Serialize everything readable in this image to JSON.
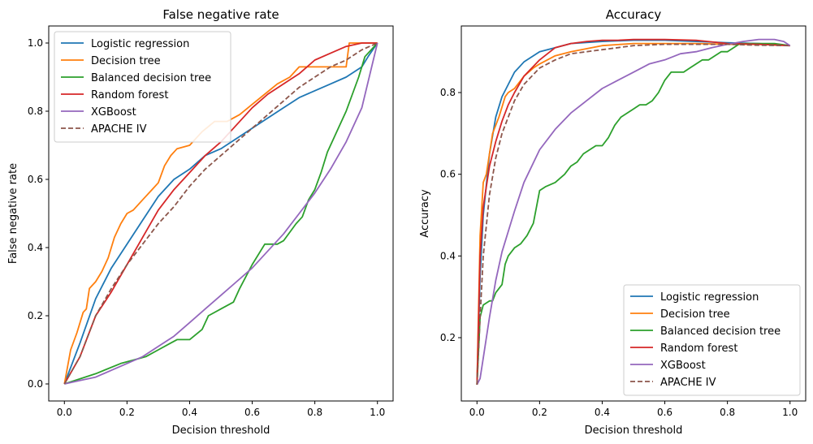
{
  "series_colors": {
    "Logistic regression": "#1f77b4",
    "Decision tree": "#ff7f0e",
    "Balanced decision tree": "#2ca02c",
    "Random forest": "#d62728",
    "XGBoost": "#9467bd",
    "APACHE IV": "#8c564b"
  },
  "chart_data": [
    {
      "type": "line",
      "title": "False negative rate",
      "xlabel": "Decision threshold",
      "ylabel": "False negative rate",
      "xlim": [
        -0.05,
        1.05
      ],
      "ylim": [
        -0.05,
        1.05
      ],
      "xticks": [
        "0.0",
        "0.2",
        "0.4",
        "0.6",
        "0.8",
        "1.0"
      ],
      "yticks": [
        "0.0",
        "0.2",
        "0.4",
        "0.6",
        "0.8",
        "1.0"
      ],
      "grid": false,
      "legend_position": "upper-left",
      "series": [
        {
          "name": "Logistic regression",
          "style": "solid",
          "x": [
            0,
            0.05,
            0.1,
            0.15,
            0.2,
            0.25,
            0.3,
            0.35,
            0.4,
            0.45,
            0.5,
            0.55,
            0.6,
            0.65,
            0.7,
            0.75,
            0.8,
            0.85,
            0.9,
            0.95,
            0.97,
            1.0
          ],
          "y": [
            0,
            0.12,
            0.25,
            0.34,
            0.41,
            0.48,
            0.55,
            0.6,
            0.63,
            0.67,
            0.69,
            0.72,
            0.75,
            0.78,
            0.81,
            0.84,
            0.86,
            0.88,
            0.9,
            0.93,
            0.96,
            1.0
          ]
        },
        {
          "name": "Decision tree",
          "style": "solid",
          "x": [
            0,
            0.02,
            0.04,
            0.06,
            0.07,
            0.08,
            0.1,
            0.12,
            0.14,
            0.16,
            0.18,
            0.2,
            0.22,
            0.25,
            0.28,
            0.3,
            0.32,
            0.34,
            0.36,
            0.4,
            0.44,
            0.48,
            0.52,
            0.56,
            0.6,
            0.64,
            0.68,
            0.72,
            0.75,
            0.8,
            0.85,
            0.9,
            0.91,
            1.0
          ],
          "y": [
            0,
            0.1,
            0.15,
            0.21,
            0.22,
            0.28,
            0.3,
            0.33,
            0.37,
            0.43,
            0.47,
            0.5,
            0.51,
            0.54,
            0.57,
            0.59,
            0.64,
            0.67,
            0.69,
            0.7,
            0.74,
            0.77,
            0.77,
            0.79,
            0.82,
            0.85,
            0.88,
            0.9,
            0.93,
            0.93,
            0.93,
            0.93,
            1.0,
            1.0
          ]
        },
        {
          "name": "Balanced decision tree",
          "style": "solid",
          "x": [
            0,
            0.1,
            0.18,
            0.22,
            0.26,
            0.3,
            0.34,
            0.36,
            0.4,
            0.44,
            0.46,
            0.5,
            0.54,
            0.56,
            0.6,
            0.64,
            0.66,
            0.68,
            0.7,
            0.74,
            0.76,
            0.78,
            0.8,
            0.82,
            0.84,
            0.86,
            0.88,
            0.9,
            0.92,
            0.94,
            0.96,
            1.0
          ],
          "y": [
            0,
            0.03,
            0.06,
            0.07,
            0.08,
            0.1,
            0.12,
            0.13,
            0.13,
            0.16,
            0.2,
            0.22,
            0.24,
            0.28,
            0.35,
            0.41,
            0.41,
            0.41,
            0.42,
            0.47,
            0.49,
            0.54,
            0.57,
            0.62,
            0.68,
            0.72,
            0.76,
            0.8,
            0.85,
            0.9,
            0.96,
            1.0
          ]
        },
        {
          "name": "Random forest",
          "style": "solid",
          "x": [
            0,
            0.05,
            0.1,
            0.15,
            0.2,
            0.25,
            0.3,
            0.35,
            0.4,
            0.45,
            0.5,
            0.55,
            0.6,
            0.65,
            0.7,
            0.75,
            0.8,
            0.85,
            0.9,
            0.95,
            1.0
          ],
          "y": [
            0,
            0.08,
            0.2,
            0.27,
            0.35,
            0.43,
            0.51,
            0.57,
            0.62,
            0.67,
            0.71,
            0.76,
            0.81,
            0.85,
            0.88,
            0.91,
            0.95,
            0.97,
            0.99,
            1.0,
            1.0
          ]
        },
        {
          "name": "XGBoost",
          "style": "solid",
          "x": [
            0,
            0.05,
            0.1,
            0.15,
            0.2,
            0.25,
            0.3,
            0.35,
            0.4,
            0.45,
            0.5,
            0.55,
            0.6,
            0.65,
            0.7,
            0.75,
            0.8,
            0.85,
            0.9,
            0.95,
            1.0
          ],
          "y": [
            0,
            0.01,
            0.02,
            0.04,
            0.06,
            0.08,
            0.11,
            0.14,
            0.18,
            0.22,
            0.26,
            0.3,
            0.34,
            0.39,
            0.44,
            0.5,
            0.56,
            0.63,
            0.71,
            0.81,
            1.0
          ]
        },
        {
          "name": "APACHE IV",
          "style": "dashed",
          "x": [
            0,
            0.05,
            0.1,
            0.15,
            0.2,
            0.25,
            0.3,
            0.35,
            0.4,
            0.45,
            0.5,
            0.55,
            0.6,
            0.65,
            0.7,
            0.75,
            0.8,
            0.85,
            0.9,
            0.95,
            1.0
          ],
          "y": [
            0,
            0.08,
            0.2,
            0.28,
            0.35,
            0.41,
            0.47,
            0.52,
            0.58,
            0.63,
            0.67,
            0.71,
            0.75,
            0.79,
            0.83,
            0.87,
            0.9,
            0.93,
            0.95,
            0.98,
            1.0
          ]
        }
      ]
    },
    {
      "type": "line",
      "title": "Accuracy",
      "xlabel": "Decision threshold",
      "ylabel": "Accuracy",
      "xlim": [
        -0.05,
        1.05
      ],
      "ylim": [
        0.045,
        0.963
      ],
      "xticks": [
        "0.0",
        "0.2",
        "0.4",
        "0.6",
        "0.8",
        "1.0"
      ],
      "yticks": [
        "0.2",
        "0.4",
        "0.6",
        "0.8"
      ],
      "grid": false,
      "legend_position": "lower-right",
      "series": [
        {
          "name": "Logistic regression",
          "style": "solid",
          "x": [
            0,
            0.01,
            0.02,
            0.04,
            0.06,
            0.08,
            0.1,
            0.12,
            0.15,
            0.2,
            0.25,
            0.3,
            0.4,
            0.5,
            0.6,
            0.7,
            0.8,
            0.9,
            1.0
          ],
          "y": [
            0.085,
            0.35,
            0.5,
            0.65,
            0.74,
            0.79,
            0.82,
            0.85,
            0.875,
            0.9,
            0.91,
            0.92,
            0.925,
            0.928,
            0.928,
            0.925,
            0.922,
            0.92,
            0.915
          ]
        },
        {
          "name": "Decision tree",
          "style": "solid",
          "x": [
            0,
            0.01,
            0.02,
            0.03,
            0.05,
            0.07,
            0.09,
            0.1,
            0.12,
            0.15,
            0.18,
            0.2,
            0.25,
            0.3,
            0.4,
            0.5,
            0.6,
            0.7,
            0.8,
            0.9,
            1.0
          ],
          "y": [
            0.085,
            0.45,
            0.58,
            0.6,
            0.7,
            0.74,
            0.79,
            0.8,
            0.81,
            0.84,
            0.86,
            0.87,
            0.89,
            0.9,
            0.915,
            0.92,
            0.92,
            0.92,
            0.918,
            0.918,
            0.915
          ]
        },
        {
          "name": "Balanced decision tree",
          "style": "solid",
          "x": [
            0,
            0.01,
            0.02,
            0.04,
            0.05,
            0.06,
            0.08,
            0.09,
            0.1,
            0.12,
            0.14,
            0.16,
            0.18,
            0.2,
            0.22,
            0.25,
            0.28,
            0.3,
            0.32,
            0.34,
            0.36,
            0.38,
            0.4,
            0.42,
            0.44,
            0.46,
            0.48,
            0.5,
            0.52,
            0.54,
            0.56,
            0.58,
            0.6,
            0.62,
            0.64,
            0.66,
            0.68,
            0.7,
            0.72,
            0.74,
            0.76,
            0.78,
            0.8,
            0.82,
            0.84,
            0.86,
            0.88,
            0.9,
            0.92,
            0.95,
            1.0
          ],
          "y": [
            0.085,
            0.25,
            0.28,
            0.29,
            0.29,
            0.31,
            0.33,
            0.38,
            0.4,
            0.42,
            0.43,
            0.45,
            0.48,
            0.56,
            0.57,
            0.58,
            0.6,
            0.62,
            0.63,
            0.65,
            0.66,
            0.67,
            0.67,
            0.69,
            0.72,
            0.74,
            0.75,
            0.76,
            0.77,
            0.77,
            0.78,
            0.8,
            0.83,
            0.85,
            0.85,
            0.85,
            0.86,
            0.87,
            0.88,
            0.88,
            0.89,
            0.9,
            0.9,
            0.91,
            0.92,
            0.92,
            0.92,
            0.92,
            0.92,
            0.92,
            0.915
          ]
        },
        {
          "name": "Random forest",
          "style": "solid",
          "x": [
            0,
            0.01,
            0.02,
            0.04,
            0.06,
            0.08,
            0.1,
            0.12,
            0.15,
            0.2,
            0.25,
            0.3,
            0.35,
            0.4,
            0.45,
            0.5,
            0.6,
            0.7,
            0.8,
            0.9,
            1.0
          ],
          "y": [
            0.085,
            0.4,
            0.52,
            0.62,
            0.68,
            0.73,
            0.77,
            0.8,
            0.84,
            0.88,
            0.91,
            0.92,
            0.925,
            0.928,
            0.928,
            0.93,
            0.93,
            0.928,
            0.92,
            0.918,
            0.915
          ]
        },
        {
          "name": "XGBoost",
          "style": "solid",
          "x": [
            0,
            0.01,
            0.02,
            0.04,
            0.06,
            0.08,
            0.1,
            0.12,
            0.15,
            0.2,
            0.25,
            0.3,
            0.35,
            0.4,
            0.45,
            0.5,
            0.55,
            0.6,
            0.65,
            0.7,
            0.75,
            0.8,
            0.85,
            0.9,
            0.95,
            0.98,
            1.0
          ],
          "y": [
            0.085,
            0.1,
            0.15,
            0.25,
            0.34,
            0.41,
            0.46,
            0.51,
            0.58,
            0.66,
            0.71,
            0.75,
            0.78,
            0.81,
            0.83,
            0.85,
            0.87,
            0.88,
            0.895,
            0.9,
            0.91,
            0.918,
            0.925,
            0.93,
            0.93,
            0.925,
            0.915
          ]
        },
        {
          "name": "APACHE IV",
          "style": "dashed",
          "x": [
            0,
            0.01,
            0.02,
            0.04,
            0.06,
            0.08,
            0.1,
            0.12,
            0.15,
            0.2,
            0.25,
            0.3,
            0.35,
            0.4,
            0.5,
            0.6,
            0.7,
            0.8,
            0.9,
            1.0
          ],
          "y": [
            0.085,
            0.25,
            0.4,
            0.55,
            0.64,
            0.7,
            0.74,
            0.78,
            0.82,
            0.86,
            0.88,
            0.895,
            0.9,
            0.905,
            0.915,
            0.918,
            0.918,
            0.918,
            0.916,
            0.915
          ]
        }
      ]
    }
  ]
}
